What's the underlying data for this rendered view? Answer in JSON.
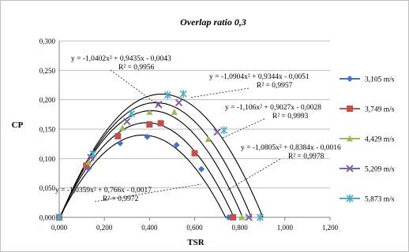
{
  "chart_data": {
    "type": "scatter",
    "title": "Overlap ratio 0,3",
    "xlabel": "TSR",
    "ylabel": "CP",
    "xlim": [
      0,
      1.2
    ],
    "ylim": [
      0,
      0.3
    ],
    "xticks": [
      "0,000",
      "0,200",
      "0,400",
      "0,600",
      "0,800",
      "1,000",
      "1,200"
    ],
    "yticks": [
      "0,000",
      "0,050",
      "0,100",
      "0,150",
      "0,200",
      "0,250",
      "0,300"
    ],
    "grid": "horizontal",
    "legend_position": "right",
    "series": [
      {
        "name": "3,105 m/s",
        "color": "#4472C4",
        "marker": "diamond",
        "x": [
          0.0,
          0.13,
          0.27,
          0.39,
          0.52,
          0.63,
          0.75
        ],
        "y": [
          0.0,
          0.083,
          0.126,
          0.137,
          0.123,
          0.082,
          0.0
        ],
        "trend": {
          "a": -1.0359,
          "b": 0.766,
          "c": -0.0017
        },
        "equation": "y = -1,0359x² + 0,766x - 0,0017",
        "r2": "R² = 0,9972"
      },
      {
        "name": "3,749 m/s",
        "color": "#C0504D",
        "marker": "square",
        "x": [
          0.0,
          0.12,
          0.26,
          0.4,
          0.45,
          0.6,
          0.77
        ],
        "y": [
          0.0,
          0.088,
          0.138,
          0.158,
          0.16,
          0.109,
          0.0
        ],
        "trend": {
          "a": -1.0805,
          "b": 0.8384,
          "c": -0.0016
        },
        "equation": "y = -1,0805x² + 0,8384x - 0,0016",
        "r2": "R² = 0,9978"
      },
      {
        "name": "4,429 m/s",
        "color": "#9BBB59",
        "marker": "triangle",
        "x": [
          0.0,
          0.13,
          0.28,
          0.4,
          0.51,
          0.66,
          0.81
        ],
        "y": [
          0.0,
          0.094,
          0.152,
          0.179,
          0.179,
          0.133,
          0.0
        ],
        "trend": {
          "a": -1.106,
          "b": 0.9027,
          "c": -0.0028
        },
        "equation": "y = -1,106x² + 0,9027x - 0,0028",
        "r2": "R² = 0,9993"
      },
      {
        "name": "5,209 m/s",
        "color": "#8064A2",
        "marker": "x",
        "x": [
          0.0,
          0.14,
          0.3,
          0.44,
          0.53,
          0.7,
          0.84
        ],
        "y": [
          0.0,
          0.102,
          0.163,
          0.192,
          0.195,
          0.145,
          0.0
        ],
        "trend": {
          "a": -1.0904,
          "b": 0.9344,
          "c": -0.0051
        },
        "equation": "y = -1,0904x² + 0,9344x - 0,0051",
        "r2": "R² = 0,9957"
      },
      {
        "name": "5,873 m/s",
        "color": "#4BACC6",
        "marker": "asterisk",
        "x": [
          0.0,
          0.15,
          0.32,
          0.48,
          0.55,
          0.73,
          0.89
        ],
        "y": [
          0.0,
          0.108,
          0.176,
          0.208,
          0.21,
          0.148,
          0.0
        ],
        "trend": {
          "a": -1.0402,
          "b": 0.9435,
          "c": -0.0043
        },
        "equation": "y = -1,0402x² + 0,9435x - 0,0043",
        "r2": "R² = 0,9956"
      }
    ]
  }
}
